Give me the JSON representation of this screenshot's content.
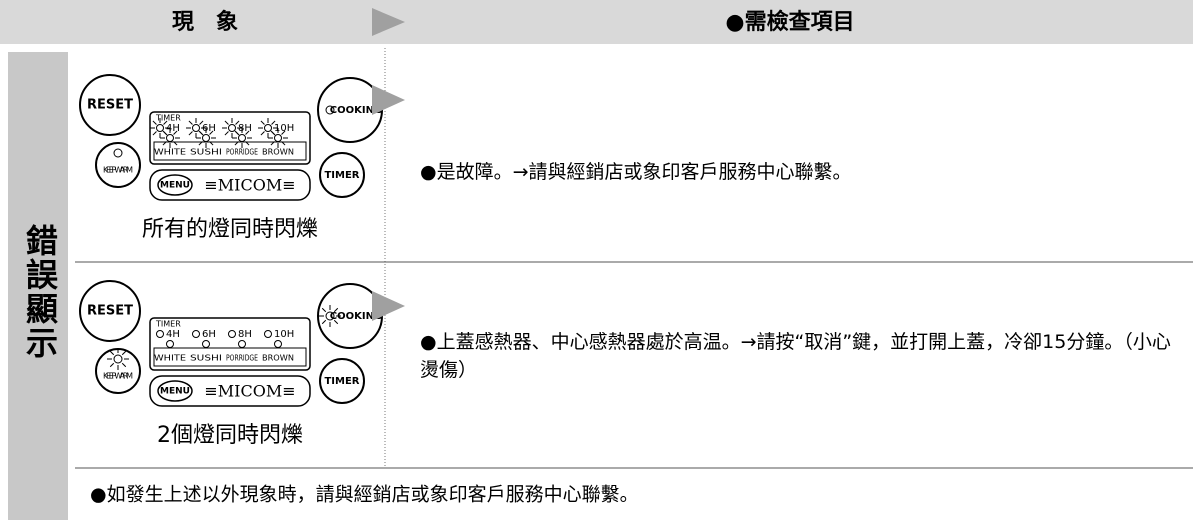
{
  "header": {
    "phenomenon": "現　象",
    "check_items": "●需檢查項目"
  },
  "side_label": "錯誤顯示",
  "panel": {
    "reset": "RESET",
    "keep_warm": "KEEP WARM",
    "cooking": "COOKING",
    "timer_button": "TIMER",
    "menu": "MENU",
    "brand": "≡MICOM≡",
    "timer_label": "TIMER",
    "timer_lamps": [
      "4H",
      "6H",
      "8H",
      "10H"
    ],
    "menu_lamps": [
      "WHITE",
      "SUSHI",
      "PORRIDGE",
      "BROWN"
    ]
  },
  "rows": [
    {
      "caption": "所有的燈同時閃爍",
      "remedy": "●是故障。→請與經銷店或象印客戶服務中心聯繫。"
    },
    {
      "caption": "2個燈同時閃爍",
      "remedy": "●上蓋感熱器、中心感熱器處於高温。→請按“取消”鍵，並打開上蓋，冷卻15分鐘。（小心燙傷）"
    }
  ],
  "footer": "●如發生上述以外現象時，請與經銷店或象印客戶服務中心聯繫。"
}
